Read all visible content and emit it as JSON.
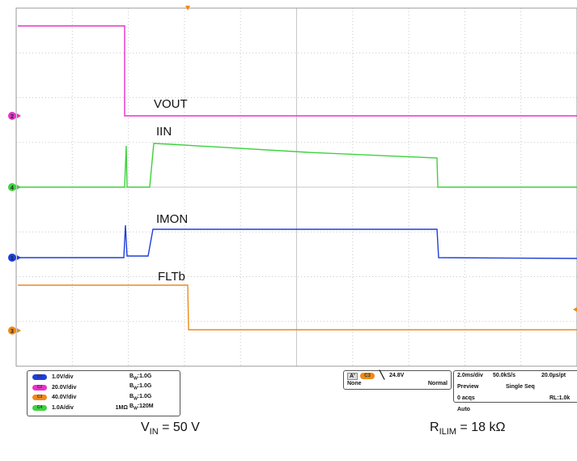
{
  "traces": [
    {
      "label": "VOUT",
      "color": "#e832c8",
      "marker": "2"
    },
    {
      "label": "IIN",
      "color": "#3ed23e",
      "marker": "4"
    },
    {
      "label": "IMON",
      "color": "#1f3fd8",
      "marker": "1"
    },
    {
      "label": "FLTb",
      "color": "#ee8a1a",
      "marker": "3"
    }
  ],
  "channels": [
    {
      "id": "C1",
      "scale": "1.0V/div",
      "bw": "1.0G",
      "impedance": "",
      "color": "#1f3fd8"
    },
    {
      "id": "C2",
      "scale": "20.0V/div",
      "bw": "1.0G",
      "impedance": "",
      "color": "#e832c8"
    },
    {
      "id": "C3",
      "scale": "40.0V/div",
      "bw": "1.0G",
      "impedance": "",
      "color": "#ee8a1a"
    },
    {
      "id": "C4",
      "scale": "1.0A/div",
      "bw": "120M",
      "impedance": "1MΩ",
      "color": "#3ed23e"
    }
  ],
  "bw_prefix": "B",
  "bw_sub": "W",
  "trigger": {
    "a_label": "A'",
    "source": "C3",
    "level": "24.8V",
    "coupling": "None",
    "mode": "Normal"
  },
  "acquisition": {
    "timebase": "2.0ms/div",
    "sample_rate": "50.0kS/s",
    "resolution": "20.0µs/pt",
    "preview": "Preview",
    "seq": "Single Seq",
    "acqs": "0 acqs",
    "rl": "RL:1.0k",
    "auto": "Auto"
  },
  "captions": {
    "vin_main": "V",
    "vin_sub": "IN",
    "vin_rest": " = 50 V",
    "rilim_main": "R",
    "rilim_sub": "ILIM",
    "rilim_rest": " = 18 kΩ"
  }
}
